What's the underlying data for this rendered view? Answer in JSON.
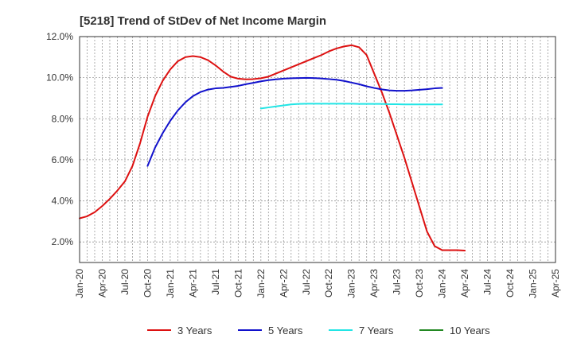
{
  "chart_data": {
    "type": "line",
    "title": "[5218]  Trend of StDev of Net Income Margin",
    "xlabel": "",
    "ylabel": "",
    "ylim": [
      1.0,
      12.0
    ],
    "yticks": [
      {
        "value": 2.0,
        "label": "2.0%"
      },
      {
        "value": 4.0,
        "label": "4.0%"
      },
      {
        "value": 6.0,
        "label": "6.0%"
      },
      {
        "value": 8.0,
        "label": "8.0%"
      },
      {
        "value": 10.0,
        "label": "10.0%"
      },
      {
        "value": 12.0,
        "label": "12.0%"
      }
    ],
    "xticks": [
      "Jan-20",
      "Apr-20",
      "Jul-20",
      "Oct-20",
      "Jan-21",
      "Apr-21",
      "Jul-21",
      "Oct-21",
      "Jan-22",
      "Apr-22",
      "Jul-22",
      "Oct-22",
      "Jan-23",
      "Apr-23",
      "Jul-23",
      "Oct-23",
      "Jan-24",
      "Apr-24",
      "Jul-24",
      "Oct-24",
      "Jan-25",
      "Apr-25"
    ],
    "grid": true,
    "legend_position": "bottom",
    "series": [
      {
        "name": "3 Years",
        "color": "#dd1111",
        "points": [
          [
            0,
            3.15
          ],
          [
            1,
            3.25
          ],
          [
            2,
            3.45
          ],
          [
            3,
            3.75
          ],
          [
            4,
            4.1
          ],
          [
            5,
            4.5
          ],
          [
            6,
            4.95
          ],
          [
            7,
            5.7
          ],
          [
            8,
            6.8
          ],
          [
            9,
            8.1
          ],
          [
            10,
            9.1
          ],
          [
            11,
            9.85
          ],
          [
            12,
            10.4
          ],
          [
            13,
            10.8
          ],
          [
            14,
            11.0
          ],
          [
            15,
            11.05
          ],
          [
            16,
            11.0
          ],
          [
            17,
            10.85
          ],
          [
            18,
            10.6
          ],
          [
            19,
            10.3
          ],
          [
            20,
            10.05
          ],
          [
            21,
            9.95
          ],
          [
            22,
            9.92
          ],
          [
            23,
            9.93
          ],
          [
            24,
            9.97
          ],
          [
            25,
            10.05
          ],
          [
            26,
            10.2
          ],
          [
            27,
            10.35
          ],
          [
            28,
            10.5
          ],
          [
            29,
            10.65
          ],
          [
            30,
            10.8
          ],
          [
            31,
            10.95
          ],
          [
            32,
            11.1
          ],
          [
            33,
            11.28
          ],
          [
            34,
            11.42
          ],
          [
            35,
            11.52
          ],
          [
            36,
            11.58
          ],
          [
            37,
            11.48
          ],
          [
            38,
            11.1
          ],
          [
            39,
            10.2
          ],
          [
            40,
            9.3
          ],
          [
            41,
            8.3
          ],
          [
            42,
            7.2
          ],
          [
            43,
            6.1
          ],
          [
            44,
            4.9
          ],
          [
            45,
            3.7
          ],
          [
            46,
            2.5
          ],
          [
            47,
            1.8
          ],
          [
            48,
            1.6
          ],
          [
            49,
            1.6
          ],
          [
            50,
            1.6
          ],
          [
            51,
            1.58
          ]
        ]
      },
      {
        "name": "5 Years",
        "color": "#1111cc",
        "points": [
          [
            9,
            5.7
          ],
          [
            10,
            6.6
          ],
          [
            11,
            7.3
          ],
          [
            12,
            7.9
          ],
          [
            13,
            8.4
          ],
          [
            14,
            8.8
          ],
          [
            15,
            9.1
          ],
          [
            16,
            9.3
          ],
          [
            17,
            9.42
          ],
          [
            18,
            9.48
          ],
          [
            19,
            9.5
          ],
          [
            20,
            9.55
          ],
          [
            21,
            9.6
          ],
          [
            22,
            9.68
          ],
          [
            23,
            9.75
          ],
          [
            24,
            9.82
          ],
          [
            25,
            9.88
          ],
          [
            26,
            9.92
          ],
          [
            27,
            9.95
          ],
          [
            28,
            9.97
          ],
          [
            29,
            9.98
          ],
          [
            30,
            9.99
          ],
          [
            31,
            9.98
          ],
          [
            32,
            9.96
          ],
          [
            33,
            9.93
          ],
          [
            34,
            9.9
          ],
          [
            35,
            9.84
          ],
          [
            36,
            9.76
          ],
          [
            37,
            9.68
          ],
          [
            38,
            9.58
          ],
          [
            39,
            9.5
          ],
          [
            40,
            9.43
          ],
          [
            41,
            9.38
          ],
          [
            42,
            9.36
          ],
          [
            43,
            9.36
          ],
          [
            44,
            9.38
          ],
          [
            45,
            9.41
          ],
          [
            46,
            9.44
          ],
          [
            47,
            9.48
          ],
          [
            48,
            9.5
          ]
        ]
      },
      {
        "name": "7 Years",
        "color": "#22e5e5",
        "points": [
          [
            24,
            8.5
          ],
          [
            25,
            8.55
          ],
          [
            26,
            8.6
          ],
          [
            27,
            8.65
          ],
          [
            28,
            8.7
          ],
          [
            29,
            8.72
          ],
          [
            30,
            8.73
          ],
          [
            31,
            8.73
          ],
          [
            32,
            8.73
          ],
          [
            33,
            8.73
          ],
          [
            34,
            8.73
          ],
          [
            35,
            8.73
          ],
          [
            36,
            8.73
          ],
          [
            37,
            8.72
          ],
          [
            38,
            8.72
          ],
          [
            39,
            8.72
          ],
          [
            40,
            8.72
          ],
          [
            41,
            8.71
          ],
          [
            42,
            8.71
          ],
          [
            43,
            8.7
          ],
          [
            44,
            8.7
          ],
          [
            45,
            8.7
          ],
          [
            46,
            8.7
          ],
          [
            47,
            8.7
          ],
          [
            48,
            8.7
          ]
        ]
      },
      {
        "name": "10 Years",
        "color": "#228822",
        "points": []
      }
    ]
  }
}
